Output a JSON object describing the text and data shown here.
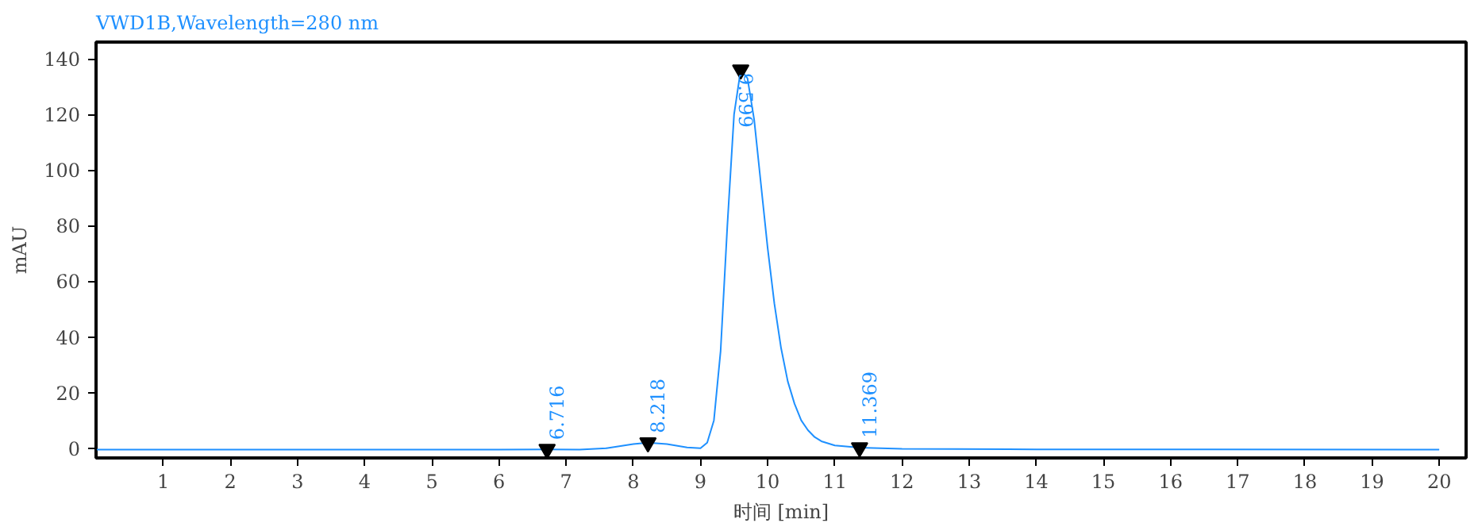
{
  "chart_data": {
    "type": "line",
    "title": "VWD1B,Wavelength=280 nm",
    "xlabel": "时间 [min]",
    "ylabel": "mAU",
    "series": [
      {
        "color": "#1e90ff",
        "x": [
          0,
          6,
          6.716,
          7.2,
          7.6,
          8.0,
          8.218,
          8.5,
          8.8,
          9.0,
          9.1,
          9.2,
          9.3,
          9.4,
          9.5,
          9.599,
          9.7,
          9.8,
          9.9,
          10.0,
          10.1,
          10.2,
          10.3,
          10.4,
          10.5,
          10.6,
          10.7,
          10.8,
          11.0,
          11.369,
          12,
          14,
          20
        ],
        "values": [
          -0.5,
          -0.5,
          -0.4,
          -0.5,
          0,
          1.5,
          2,
          1.5,
          0.3,
          0,
          2,
          10,
          35,
          80,
          120,
          136,
          133,
          118,
          95,
          72,
          52,
          36,
          24,
          16,
          10,
          6.5,
          4,
          2.5,
          1,
          0.2,
          -0.2,
          -0.4,
          -0.5
        ]
      }
    ],
    "xlim": [
      0,
      20.4
    ],
    "xticks": [
      1,
      2,
      3,
      4,
      5,
      6,
      7,
      8,
      9,
      10,
      11,
      12,
      13,
      14,
      15,
      16,
      17,
      18,
      19,
      20
    ],
    "ylim": [
      -3.5,
      146
    ],
    "yticks": [
      0,
      20,
      40,
      60,
      80,
      100,
      120,
      140
    ],
    "grid": false,
    "marker": "none",
    "line_style": "solid",
    "annotations": [
      {
        "text": "6.716",
        "x": 6.716,
        "y": -0.4
      },
      {
        "text": "8.218",
        "x": 8.218,
        "y": 2
      },
      {
        "text": "9.599",
        "x": 9.599,
        "y": 136
      },
      {
        "text": "11.369",
        "x": 11.369,
        "y": 0.2
      }
    ]
  }
}
